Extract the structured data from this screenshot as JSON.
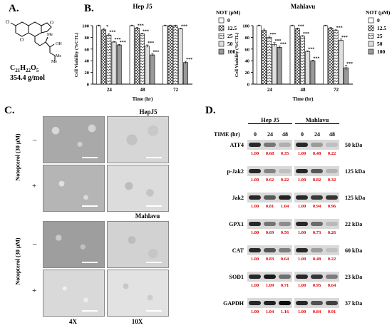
{
  "panelA": {
    "letter": "A.",
    "formula": "C21H22O5",
    "formula_main": "C",
    "formula_parts": [
      "21",
      "H",
      "22",
      "O",
      "5"
    ],
    "mass": "354.4 g/mol",
    "atoms": {
      "o1": "O",
      "o2": "O",
      "o3": "O",
      "oh": "OH",
      "me1": "Me",
      "me2": "Me",
      "me3": "Me"
    }
  },
  "panelB": {
    "letter": "B."
  },
  "panelC": {
    "letter": "C.",
    "group1_title": "HepJ5",
    "group2_title": "Mahlavu",
    "ylabel": "Notopterol (30 μM)",
    "minus": "–",
    "plus": "+",
    "mag1": "4X",
    "mag2": "10X"
  },
  "panelD": {
    "letter": "D.",
    "time_label": "TIME (hr)",
    "cell1": "Hep J5",
    "cell2": "Mahlavu",
    "times": [
      "0",
      "24",
      "48"
    ],
    "rows": [
      {
        "name": "ATF4",
        "kda": "50 kDa",
        "hep": [
          "1.00",
          "0.68",
          "0.35"
        ],
        "mah": [
          "1.00",
          "0.48",
          "0.22"
        ]
      },
      {
        "name": "p-Jak2",
        "kda": "125 kDa",
        "hep": [
          "1.00",
          "0.62",
          "0.22"
        ],
        "mah": [
          "1.00",
          "0.82",
          "0.32"
        ]
      },
      {
        "name": "Jak2",
        "kda": "125 kDa",
        "hep": [
          "1.00",
          "0.81",
          "1.04"
        ],
        "mah": [
          "1.00",
          "0.94",
          "0.96"
        ]
      },
      {
        "name": "GPX1",
        "kda": "22 kDa",
        "hep": [
          "1.00",
          "0.69",
          "0.56"
        ],
        "mah": [
          "1.00",
          "0.73",
          "0.26"
        ]
      },
      {
        "name": "CAT",
        "kda": "60 kDa",
        "hep": [
          "1.00",
          "0.83",
          "0.64"
        ],
        "mah": [
          "1.00",
          "0.48",
          "0.22"
        ]
      },
      {
        "name": "SOD1",
        "kda": "23 kDa",
        "hep": [
          "1.00",
          "1.09",
          "0.71"
        ],
        "mah": [
          "1.00",
          "0.95",
          "0.64"
        ]
      },
      {
        "name": "GAPDH",
        "kda": "37 kDa",
        "hep": [
          "1.00",
          "1.04",
          "1.16"
        ],
        "mah": [
          "1.00",
          "0.84",
          "0.91"
        ]
      }
    ]
  },
  "chart_data": [
    {
      "type": "bar",
      "title": "Hep J5",
      "xlabel": "Time (hr)",
      "ylabel": "Cell Viability (%CTL)",
      "ylim": [
        0,
        100
      ],
      "yticks": [
        "0",
        "20",
        "40",
        "60",
        "80",
        "100"
      ],
      "categories": [
        "24",
        "48",
        "72"
      ],
      "legend_title": "NOT (μM)",
      "series": [
        {
          "name": "0",
          "values": [
            100,
            100,
            100
          ],
          "errors": [
            1,
            1,
            1
          ]
        },
        {
          "name": "12.5",
          "values": [
            93,
            96,
            100
          ],
          "errors": [
            2,
            1,
            1
          ]
        },
        {
          "name": "25",
          "values": [
            84,
            86,
            100
          ],
          "errors": [
            2,
            1,
            1
          ]
        },
        {
          "name": "50",
          "values": [
            72,
            65,
            95
          ],
          "errors": [
            1,
            2,
            1
          ]
        },
        {
          "name": "100",
          "values": [
            67,
            50,
            37
          ],
          "errors": [
            1,
            2,
            2
          ]
        }
      ],
      "significance": [
        [
          "",
          "*",
          "***",
          "***",
          "***"
        ],
        [
          "",
          "***",
          "***",
          "***",
          "***"
        ],
        [
          "",
          "",
          "",
          "***",
          "***"
        ]
      ]
    },
    {
      "type": "bar",
      "title": "Mahlavu",
      "xlabel": "Time (hr)",
      "ylabel": "Cell Viability (%CTL)",
      "ylim": [
        0,
        100
      ],
      "yticks": [
        "0",
        "20",
        "40",
        "60",
        "80",
        "100"
      ],
      "categories": [
        "24",
        "48",
        "72"
      ],
      "legend_title": "NOT (μM)",
      "series": [
        {
          "name": "0",
          "values": [
            100,
            100,
            100
          ],
          "errors": [
            1,
            1,
            1
          ]
        },
        {
          "name": "12.5",
          "values": [
            92,
            95,
            96
          ],
          "errors": [
            2,
            1,
            1
          ]
        },
        {
          "name": "25",
          "values": [
            80,
            82,
            92
          ],
          "errors": [
            2,
            1,
            1
          ]
        },
        {
          "name": "50",
          "values": [
            68,
            56,
            75
          ],
          "errors": [
            3,
            1,
            2
          ]
        },
        {
          "name": "100",
          "values": [
            63,
            40,
            28
          ],
          "errors": [
            2,
            1,
            4
          ]
        }
      ],
      "significance": [
        [
          "",
          "",
          "***",
          "***",
          "***"
        ],
        [
          "",
          "***",
          "***",
          "***",
          "***"
        ],
        [
          "",
          "",
          "***",
          "***",
          "***"
        ]
      ]
    }
  ]
}
